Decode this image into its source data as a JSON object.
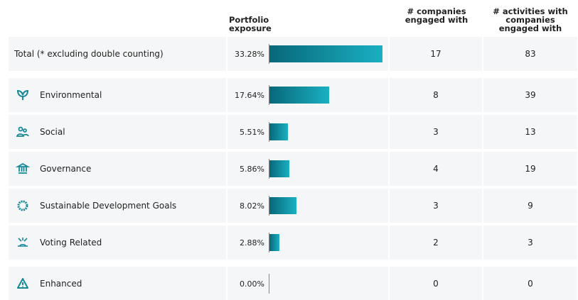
{
  "header": {
    "exposure": "Portfolio exposure",
    "companies": "# companies engaged with",
    "activities": "# activities with companies engaged with"
  },
  "rows": [
    {
      "name": "Total (* excluding double counting)",
      "exposure": {
        "value": 33.28,
        "label": "33.28%"
      },
      "companies": 17,
      "activities": 83
    },
    {
      "name": "Environmental",
      "exposure": {
        "value": 17.64,
        "label": "17.64%"
      },
      "companies": 8,
      "activities": 39
    },
    {
      "name": "Social",
      "exposure": {
        "value": 5.51,
        "label": "5.51%"
      },
      "companies": 3,
      "activities": 13
    },
    {
      "name": "Governance",
      "exposure": {
        "value": 5.86,
        "label": "5.86%"
      },
      "companies": 4,
      "activities": 19
    },
    {
      "name": "Sustainable Development Goals",
      "exposure": {
        "value": 8.02,
        "label": "8.02%"
      },
      "companies": 3,
      "activities": 9
    },
    {
      "name": "Voting Related",
      "exposure": {
        "value": 2.88,
        "label": "2.88%"
      },
      "companies": 2,
      "activities": 3
    },
    {
      "name": "Enhanced",
      "exposure": {
        "value": 0,
        "label": "0.00%"
      },
      "companies": 0,
      "activities": 0
    }
  ]
}
